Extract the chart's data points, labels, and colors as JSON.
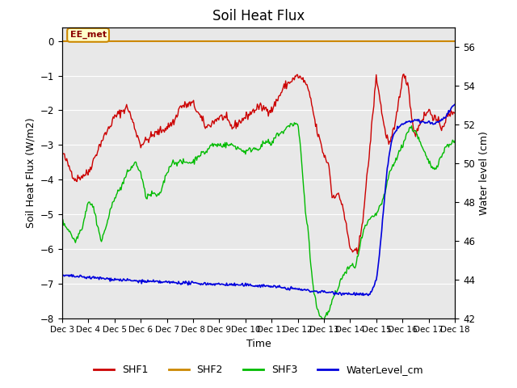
{
  "title": "Soil Heat Flux",
  "xlabel": "Time",
  "ylabel_left": "Soil Heat Flux (W/m2)",
  "ylabel_right": "Water level (cm)",
  "background_color": "#e8e8e8",
  "ylim_left": [
    -8.0,
    0.4
  ],
  "ylim_right": [
    42,
    57
  ],
  "yticks_left": [
    0.0,
    -1.0,
    -2.0,
    -3.0,
    -4.0,
    -5.0,
    -6.0,
    -7.0,
    -8.0
  ],
  "yticks_right": [
    42,
    44,
    46,
    48,
    50,
    52,
    54,
    56
  ],
  "xtick_labels": [
    "Dec 3",
    "Dec 4",
    "Dec 5",
    "Dec 6",
    "Dec 7",
    "Dec 8",
    "Dec 9",
    "Dec 10",
    "Dec 11",
    "Dec 12",
    "Dec 13",
    "Dec 14",
    "Dec 15",
    "Dec 16",
    "Dec 17",
    "Dec 18"
  ],
  "annotation_text": "EE_met",
  "annotation_color": "#8b0000",
  "annotation_bg": "#ffffcc",
  "annotation_border": "#cc8800",
  "shf1_color": "#cc0000",
  "shf2_color": "#cc8800",
  "shf3_color": "#00bb00",
  "water_color": "#0000dd",
  "legend_labels": [
    "SHF1",
    "SHF2",
    "SHF3",
    "WaterLevel_cm"
  ]
}
